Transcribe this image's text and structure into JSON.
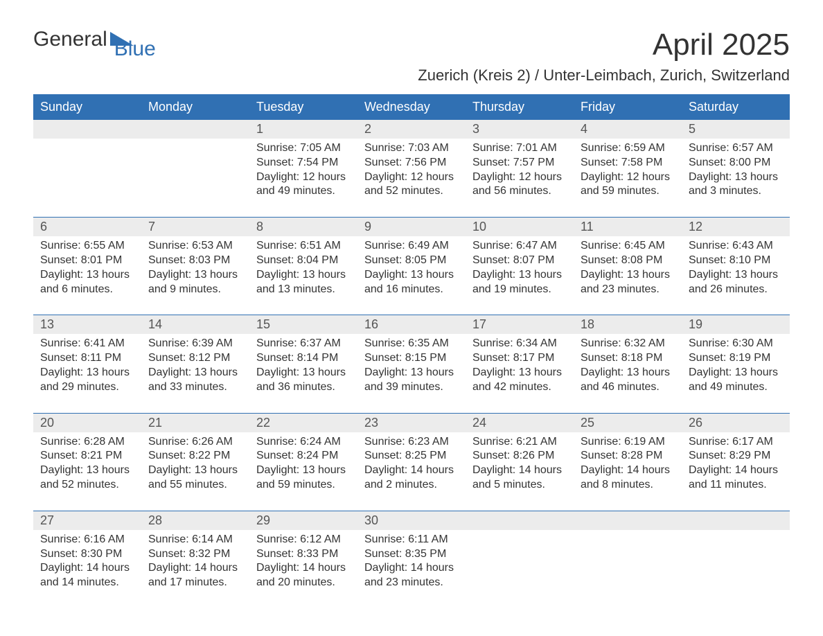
{
  "logo": {
    "text1": "General",
    "text2": "Blue"
  },
  "title": "April 2025",
  "subtitle": "Zuerich (Kreis 2) / Unter-Leimbach, Zurich, Switzerland",
  "colors": {
    "header_bg": "#3070b3",
    "header_text": "#ffffff",
    "daynum_bg": "#ececec",
    "text": "#333333",
    "rule": "#3070b3"
  },
  "day_names": [
    "Sunday",
    "Monday",
    "Tuesday",
    "Wednesday",
    "Thursday",
    "Friday",
    "Saturday"
  ],
  "weeks": [
    {
      "nums": [
        "",
        "",
        "1",
        "2",
        "3",
        "4",
        "5"
      ],
      "cells": [
        {
          "sunrise": "",
          "sunset": "",
          "daylight": ""
        },
        {
          "sunrise": "",
          "sunset": "",
          "daylight": ""
        },
        {
          "sunrise": "Sunrise: 7:05 AM",
          "sunset": "Sunset: 7:54 PM",
          "daylight": "Daylight: 12 hours and 49 minutes."
        },
        {
          "sunrise": "Sunrise: 7:03 AM",
          "sunset": "Sunset: 7:56 PM",
          "daylight": "Daylight: 12 hours and 52 minutes."
        },
        {
          "sunrise": "Sunrise: 7:01 AM",
          "sunset": "Sunset: 7:57 PM",
          "daylight": "Daylight: 12 hours and 56 minutes."
        },
        {
          "sunrise": "Sunrise: 6:59 AM",
          "sunset": "Sunset: 7:58 PM",
          "daylight": "Daylight: 12 hours and 59 minutes."
        },
        {
          "sunrise": "Sunrise: 6:57 AM",
          "sunset": "Sunset: 8:00 PM",
          "daylight": "Daylight: 13 hours and 3 minutes."
        }
      ]
    },
    {
      "nums": [
        "6",
        "7",
        "8",
        "9",
        "10",
        "11",
        "12"
      ],
      "cells": [
        {
          "sunrise": "Sunrise: 6:55 AM",
          "sunset": "Sunset: 8:01 PM",
          "daylight": "Daylight: 13 hours and 6 minutes."
        },
        {
          "sunrise": "Sunrise: 6:53 AM",
          "sunset": "Sunset: 8:03 PM",
          "daylight": "Daylight: 13 hours and 9 minutes."
        },
        {
          "sunrise": "Sunrise: 6:51 AM",
          "sunset": "Sunset: 8:04 PM",
          "daylight": "Daylight: 13 hours and 13 minutes."
        },
        {
          "sunrise": "Sunrise: 6:49 AM",
          "sunset": "Sunset: 8:05 PM",
          "daylight": "Daylight: 13 hours and 16 minutes."
        },
        {
          "sunrise": "Sunrise: 6:47 AM",
          "sunset": "Sunset: 8:07 PM",
          "daylight": "Daylight: 13 hours and 19 minutes."
        },
        {
          "sunrise": "Sunrise: 6:45 AM",
          "sunset": "Sunset: 8:08 PM",
          "daylight": "Daylight: 13 hours and 23 minutes."
        },
        {
          "sunrise": "Sunrise: 6:43 AM",
          "sunset": "Sunset: 8:10 PM",
          "daylight": "Daylight: 13 hours and 26 minutes."
        }
      ]
    },
    {
      "nums": [
        "13",
        "14",
        "15",
        "16",
        "17",
        "18",
        "19"
      ],
      "cells": [
        {
          "sunrise": "Sunrise: 6:41 AM",
          "sunset": "Sunset: 8:11 PM",
          "daylight": "Daylight: 13 hours and 29 minutes."
        },
        {
          "sunrise": "Sunrise: 6:39 AM",
          "sunset": "Sunset: 8:12 PM",
          "daylight": "Daylight: 13 hours and 33 minutes."
        },
        {
          "sunrise": "Sunrise: 6:37 AM",
          "sunset": "Sunset: 8:14 PM",
          "daylight": "Daylight: 13 hours and 36 minutes."
        },
        {
          "sunrise": "Sunrise: 6:35 AM",
          "sunset": "Sunset: 8:15 PM",
          "daylight": "Daylight: 13 hours and 39 minutes."
        },
        {
          "sunrise": "Sunrise: 6:34 AM",
          "sunset": "Sunset: 8:17 PM",
          "daylight": "Daylight: 13 hours and 42 minutes."
        },
        {
          "sunrise": "Sunrise: 6:32 AM",
          "sunset": "Sunset: 8:18 PM",
          "daylight": "Daylight: 13 hours and 46 minutes."
        },
        {
          "sunrise": "Sunrise: 6:30 AM",
          "sunset": "Sunset: 8:19 PM",
          "daylight": "Daylight: 13 hours and 49 minutes."
        }
      ]
    },
    {
      "nums": [
        "20",
        "21",
        "22",
        "23",
        "24",
        "25",
        "26"
      ],
      "cells": [
        {
          "sunrise": "Sunrise: 6:28 AM",
          "sunset": "Sunset: 8:21 PM",
          "daylight": "Daylight: 13 hours and 52 minutes."
        },
        {
          "sunrise": "Sunrise: 6:26 AM",
          "sunset": "Sunset: 8:22 PM",
          "daylight": "Daylight: 13 hours and 55 minutes."
        },
        {
          "sunrise": "Sunrise: 6:24 AM",
          "sunset": "Sunset: 8:24 PM",
          "daylight": "Daylight: 13 hours and 59 minutes."
        },
        {
          "sunrise": "Sunrise: 6:23 AM",
          "sunset": "Sunset: 8:25 PM",
          "daylight": "Daylight: 14 hours and 2 minutes."
        },
        {
          "sunrise": "Sunrise: 6:21 AM",
          "sunset": "Sunset: 8:26 PM",
          "daylight": "Daylight: 14 hours and 5 minutes."
        },
        {
          "sunrise": "Sunrise: 6:19 AM",
          "sunset": "Sunset: 8:28 PM",
          "daylight": "Daylight: 14 hours and 8 minutes."
        },
        {
          "sunrise": "Sunrise: 6:17 AM",
          "sunset": "Sunset: 8:29 PM",
          "daylight": "Daylight: 14 hours and 11 minutes."
        }
      ]
    },
    {
      "nums": [
        "27",
        "28",
        "29",
        "30",
        "",
        "",
        ""
      ],
      "cells": [
        {
          "sunrise": "Sunrise: 6:16 AM",
          "sunset": "Sunset: 8:30 PM",
          "daylight": "Daylight: 14 hours and 14 minutes."
        },
        {
          "sunrise": "Sunrise: 6:14 AM",
          "sunset": "Sunset: 8:32 PM",
          "daylight": "Daylight: 14 hours and 17 minutes."
        },
        {
          "sunrise": "Sunrise: 6:12 AM",
          "sunset": "Sunset: 8:33 PM",
          "daylight": "Daylight: 14 hours and 20 minutes."
        },
        {
          "sunrise": "Sunrise: 6:11 AM",
          "sunset": "Sunset: 8:35 PM",
          "daylight": "Daylight: 14 hours and 23 minutes."
        },
        {
          "sunrise": "",
          "sunset": "",
          "daylight": ""
        },
        {
          "sunrise": "",
          "sunset": "",
          "daylight": ""
        },
        {
          "sunrise": "",
          "sunset": "",
          "daylight": ""
        }
      ]
    }
  ]
}
